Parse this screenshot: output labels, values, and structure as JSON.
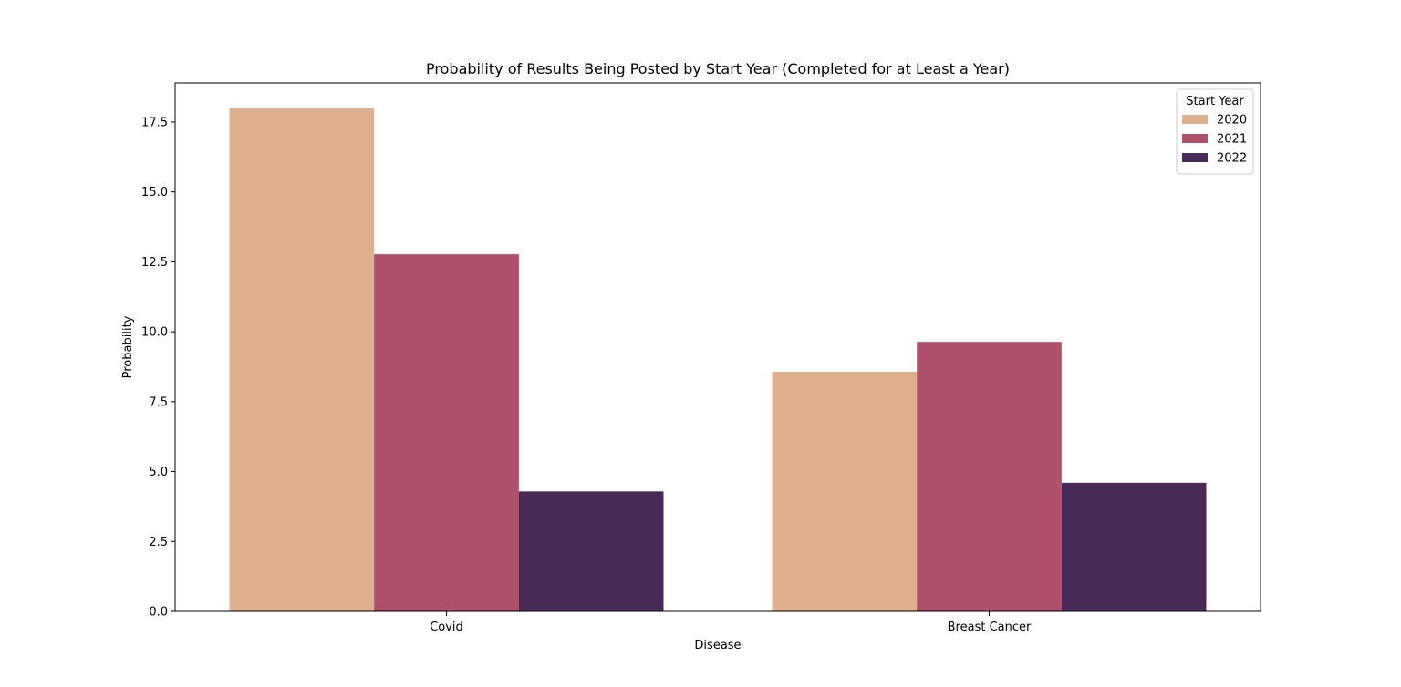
{
  "chart_data": {
    "type": "bar",
    "title": "Probability of Results Being Posted by Start Year (Completed for at Least a Year)",
    "xlabel": "Disease",
    "ylabel": "Probability",
    "categories": [
      "Covid",
      "Breast Cancer"
    ],
    "series": [
      {
        "name": "2020",
        "color": "#dfb08e",
        "values": [
          18.0,
          8.57
        ]
      },
      {
        "name": "2021",
        "color": "#b0506b",
        "values": [
          12.77,
          9.64
        ]
      },
      {
        "name": "2022",
        "color": "#482a57",
        "values": [
          4.29,
          4.6
        ]
      }
    ],
    "ylim": [
      0,
      18.9
    ],
    "yticks": [
      0.0,
      2.5,
      5.0,
      7.5,
      10.0,
      12.5,
      15.0,
      17.5
    ],
    "ytick_labels": [
      "0.0",
      "2.5",
      "5.0",
      "7.5",
      "10.0",
      "12.5",
      "15.0",
      "17.5"
    ],
    "legend": {
      "title": "Start Year",
      "placement": "top-right"
    },
    "grid": false
  }
}
